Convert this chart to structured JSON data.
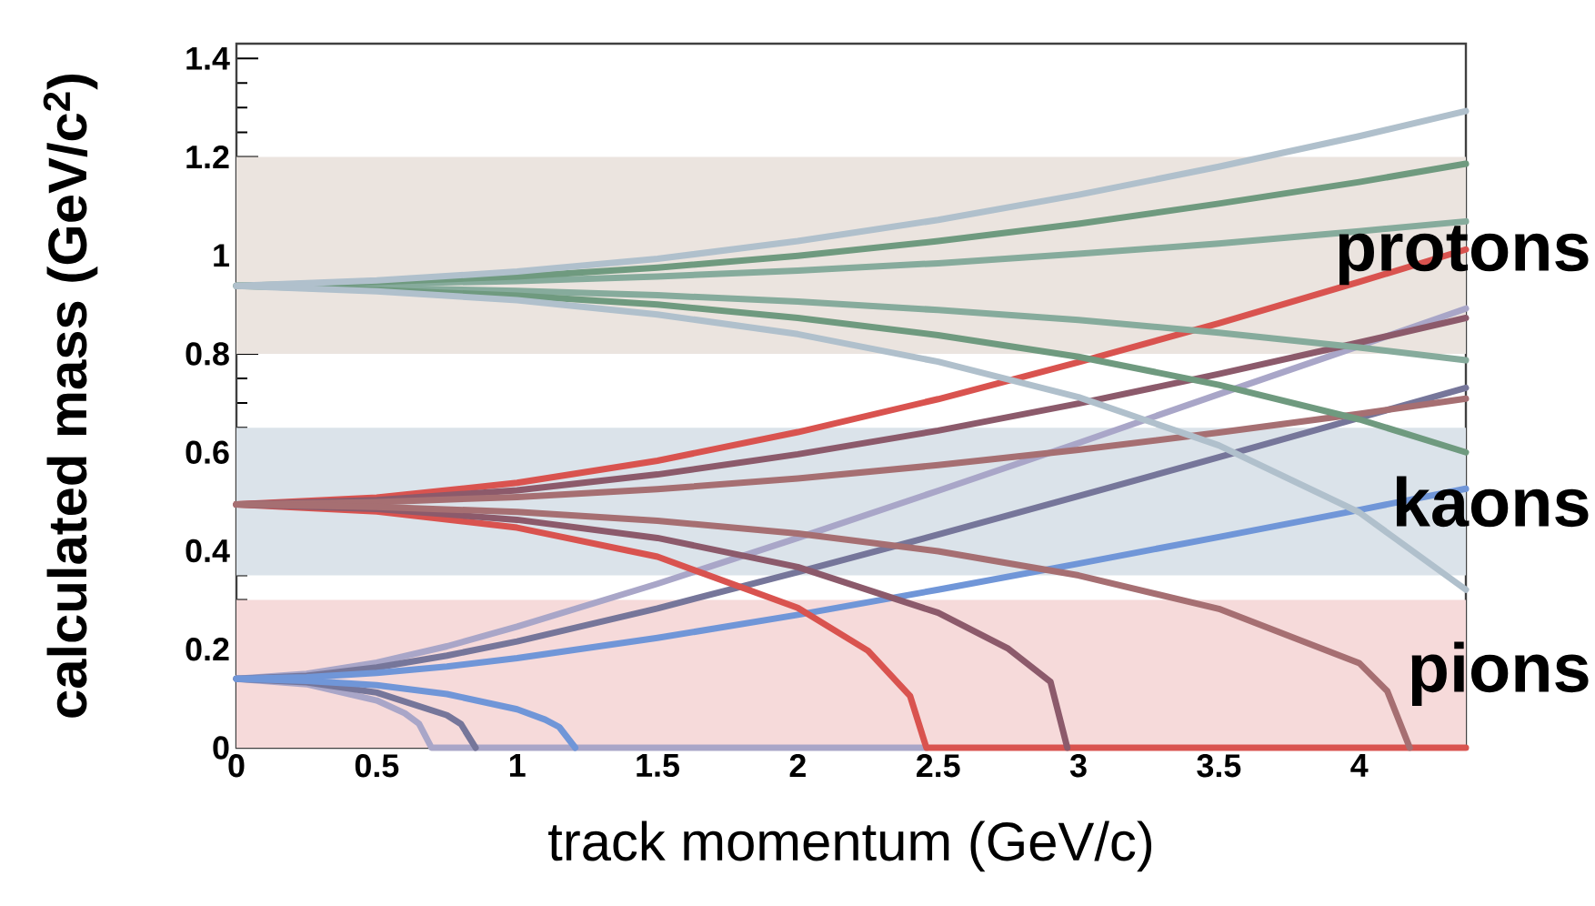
{
  "chart_data": {
    "type": "line",
    "xlabel": "track momentum (GeV/c)",
    "ylabel": "calculated mass (GeV/c$^{2}$)",
    "xlim": [
      0,
      4.38
    ],
    "ylim": [
      0,
      1.43
    ],
    "xticks": [
      0,
      0.5,
      1,
      1.5,
      2,
      2.5,
      3,
      3.5,
      4
    ],
    "yticks": [
      0,
      0.2,
      0.4,
      0.6,
      0.8,
      1,
      1.2,
      1.4
    ],
    "bands": [
      {
        "axis": "y",
        "from": 0,
        "to": 0.3,
        "label": "pions",
        "color": "#f6dada"
      },
      {
        "axis": "y",
        "from": 0.35,
        "to": 0.65,
        "label": "kaons",
        "color": "#dbe3ea"
      },
      {
        "axis": "y",
        "from": 0.8,
        "to": 1.2,
        "label": "protons",
        "color": "#ebe4df"
      }
    ],
    "series": [
      {
        "color": "#a9a6c8",
        "x": [
          0,
          0.25,
          0.5,
          0.75,
          1,
          1.5,
          2,
          2.5,
          3,
          3.5,
          4,
          4.38
        ],
        "values": [
          0.14,
          0.15,
          0.173,
          0.206,
          0.246,
          0.333,
          0.426,
          0.522,
          0.619,
          0.718,
          0.816,
          0.892
        ]
      },
      {
        "color": "#a9a6c8",
        "x": [
          0,
          0.25,
          0.5,
          0.6,
          0.65,
          0.695,
          2.46
        ],
        "values": [
          0.14,
          0.129,
          0.096,
          0.07,
          0.049,
          0,
          0
        ]
      },
      {
        "color": "#76769a",
        "x": [
          0,
          0.25,
          0.5,
          0.75,
          1,
          1.5,
          2,
          2.5,
          3,
          3.5,
          4,
          4.38
        ],
        "values": [
          0.14,
          0.146,
          0.163,
          0.187,
          0.216,
          0.283,
          0.357,
          0.433,
          0.511,
          0.59,
          0.67,
          0.731
        ]
      },
      {
        "color": "#76769a",
        "x": [
          0,
          0.25,
          0.5,
          0.75,
          0.8,
          0.852
        ],
        "values": [
          0.14,
          0.133,
          0.112,
          0.066,
          0.048,
          0
        ]
      },
      {
        "color": "#7096d8",
        "x": [
          0,
          0.25,
          0.5,
          0.75,
          1,
          1.5,
          2,
          2.5,
          3,
          3.5,
          4,
          4.38
        ],
        "values": [
          0.14,
          0.143,
          0.152,
          0.165,
          0.182,
          0.223,
          0.27,
          0.321,
          0.374,
          0.428,
          0.483,
          0.526
        ]
      },
      {
        "color": "#7096d8",
        "x": [
          0,
          0.25,
          0.5,
          0.75,
          1,
          1.1,
          1.15,
          1.207
        ],
        "values": [
          0.14,
          0.136,
          0.127,
          0.109,
          0.078,
          0.057,
          0.042,
          0
        ]
      },
      {
        "color": "#d9534f",
        "x": [
          0,
          0.5,
          1,
          1.5,
          2,
          2.5,
          3,
          3.5,
          4,
          4.38
        ],
        "values": [
          0.494,
          0.508,
          0.538,
          0.583,
          0.641,
          0.708,
          0.783,
          0.862,
          0.946,
          1.012
        ]
      },
      {
        "color": "#d9534f",
        "x": [
          0,
          0.5,
          1,
          1.5,
          2,
          2.25,
          2.4,
          2.458,
          4.38
        ],
        "values": [
          0.494,
          0.48,
          0.447,
          0.388,
          0.284,
          0.197,
          0.105,
          0,
          0
        ]
      },
      {
        "color": "#8c5a6b",
        "x": [
          0,
          0.5,
          1,
          1.5,
          2,
          2.5,
          3,
          3.5,
          4,
          4.38
        ],
        "values": [
          0.494,
          0.503,
          0.523,
          0.555,
          0.596,
          0.644,
          0.699,
          0.759,
          0.823,
          0.873
        ]
      },
      {
        "color": "#8c5a6b",
        "x": [
          0,
          0.5,
          1,
          1.5,
          2,
          2.5,
          2.75,
          2.9,
          2.96
        ],
        "values": [
          0.494,
          0.485,
          0.463,
          0.426,
          0.367,
          0.274,
          0.201,
          0.134,
          0
        ]
      },
      {
        "color": "#a66f72",
        "x": [
          0,
          0.5,
          1,
          1.5,
          2,
          2.5,
          3,
          3.5,
          4,
          4.38
        ],
        "values": [
          0.494,
          0.499,
          0.509,
          0.525,
          0.547,
          0.574,
          0.605,
          0.64,
          0.678,
          0.709
        ]
      },
      {
        "color": "#a66f72",
        "x": [
          0,
          0.5,
          1,
          1.5,
          2,
          2.5,
          3,
          3.5,
          4,
          4.1,
          4.18
        ],
        "values": [
          0.494,
          0.489,
          0.479,
          0.461,
          0.435,
          0.399,
          0.35,
          0.282,
          0.172,
          0.115,
          0
        ]
      },
      {
        "color": "#86ab9c",
        "x": [
          0,
          0.5,
          1,
          1.5,
          2,
          2.5,
          3,
          3.5,
          4,
          4.38
        ],
        "values": [
          0.938,
          0.942,
          0.948,
          0.957,
          0.969,
          0.984,
          1.003,
          1.024,
          1.049,
          1.069
        ]
      },
      {
        "color": "#86ab9c",
        "x": [
          0,
          0.5,
          1,
          1.5,
          2,
          2.5,
          3,
          3.5,
          4,
          4.38
        ],
        "values": [
          0.938,
          0.934,
          0.928,
          0.919,
          0.906,
          0.889,
          0.869,
          0.843,
          0.813,
          0.787
        ]
      },
      {
        "color": "#6f9a7f",
        "x": [
          0,
          0.5,
          1,
          1.5,
          2,
          2.5,
          3,
          3.5,
          4,
          4.38
        ],
        "values": [
          0.938,
          0.946,
          0.957,
          0.975,
          0.999,
          1.029,
          1.064,
          1.105,
          1.149,
          1.186
        ]
      },
      {
        "color": "#6f9a7f",
        "x": [
          0,
          0.5,
          1,
          1.5,
          2,
          2.5,
          3,
          3.5,
          4,
          4.38
        ],
        "values": [
          0.938,
          0.93,
          0.918,
          0.9,
          0.873,
          0.838,
          0.794,
          0.737,
          0.667,
          0.6
        ]
      },
      {
        "color": "#b0c0cc",
        "x": [
          0,
          0.5,
          1,
          1.5,
          2,
          2.5,
          3,
          3.5,
          4,
          4.38
        ],
        "values": [
          0.938,
          0.949,
          0.967,
          0.993,
          1.029,
          1.072,
          1.123,
          1.18,
          1.242,
          1.293
        ]
      },
      {
        "color": "#b0c0cc",
        "x": [
          0,
          0.5,
          1,
          1.5,
          2,
          2.5,
          3,
          3.5,
          4,
          4.38
        ],
        "values": [
          0.938,
          0.927,
          0.909,
          0.88,
          0.84,
          0.784,
          0.712,
          0.614,
          0.478,
          0.321
        ]
      }
    ]
  }
}
